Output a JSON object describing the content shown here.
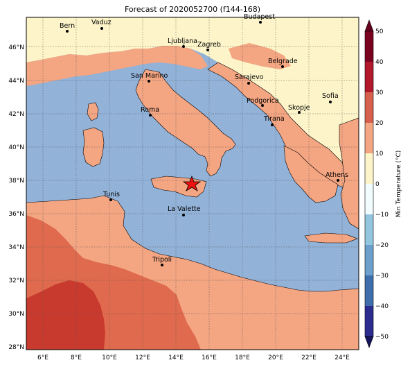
{
  "title": "Forecast of 2020052700 (f144-168)",
  "colorbar": {
    "label": "Min Temperature (°C)",
    "ticks": [
      "50",
      "40",
      "30",
      "20",
      "10",
      "0",
      "−10",
      "−20",
      "−30",
      "−40",
      "−50"
    ],
    "colors": {
      "c_50_40": "#7a0221",
      "c_40_30": "#b2182b",
      "c_30_20": "#d6604d",
      "c_20_10": "#f4a582",
      "c_10_0": "#fdf5c9",
      "c_0_m10": "#f2fbfe",
      "c_m10_m20": "#92c5de",
      "c_m20_m30": "#6b9fcc",
      "c_m30_m40": "#3e6eab",
      "c_m40_m50": "#2c2c8f"
    }
  },
  "map": {
    "sea_color": "#92b2d8",
    "lat_labels": [
      "46°N",
      "44°N",
      "42°N",
      "40°N",
      "38°N",
      "36°N",
      "34°N",
      "32°N",
      "30°N",
      "28°N"
    ],
    "lon_labels": [
      "6°E",
      "8°E",
      "10°E",
      "12°E",
      "14°E",
      "16°E",
      "18°E",
      "20°E",
      "22°E",
      "24°E"
    ],
    "cities": [
      {
        "name": "Bern"
      },
      {
        "name": "Vaduz"
      },
      {
        "name": "Budapest"
      },
      {
        "name": "Ljubljana"
      },
      {
        "name": "Zagreb"
      },
      {
        "name": "Belgrade"
      },
      {
        "name": "San Marino"
      },
      {
        "name": "Sarajevo"
      },
      {
        "name": "Podgorica"
      },
      {
        "name": "Sofia"
      },
      {
        "name": "Roma"
      },
      {
        "name": "Skopje"
      },
      {
        "name": "Tirana"
      },
      {
        "name": "Athens"
      },
      {
        "name": "Tunis"
      },
      {
        "name": "La Valette"
      },
      {
        "name": "Tripoli"
      }
    ],
    "marker": "star-icon"
  }
}
